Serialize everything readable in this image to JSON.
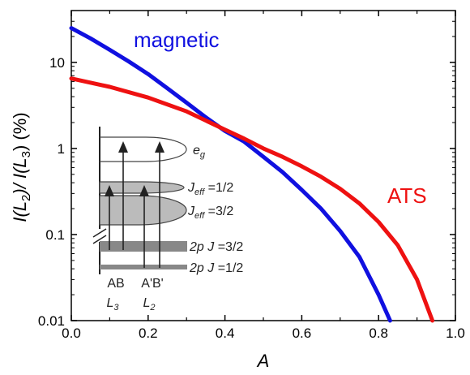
{
  "chart_data": {
    "type": "line",
    "xlabel": "A",
    "ylabel_parts": [
      "I(L",
      "2",
      ")/ I(L",
      "3",
      ") (%)"
    ],
    "xlim": [
      0.0,
      1.0
    ],
    "ylim": [
      0.01,
      40
    ],
    "yscale": "log",
    "x_ticks": [
      0.0,
      0.2,
      0.4,
      0.6,
      0.8,
      1.0
    ],
    "x_tick_labels": [
      "0.0",
      "0.2",
      "0.4",
      "0.6",
      "0.8",
      "1.0"
    ],
    "y_ticks": [
      0.01,
      0.1,
      1,
      10
    ],
    "y_tick_labels": [
      "0.01",
      "0.1",
      "1",
      "10"
    ],
    "series": [
      {
        "name": "magnetic",
        "color": "#1010e0",
        "x": [
          0.0,
          0.05,
          0.1,
          0.15,
          0.2,
          0.25,
          0.3,
          0.35,
          0.4,
          0.45,
          0.5,
          0.55,
          0.6,
          0.65,
          0.7,
          0.75,
          0.8,
          0.83
        ],
        "y": [
          25,
          19,
          14,
          10.2,
          7.3,
          5.0,
          3.4,
          2.3,
          1.6,
          1.2,
          0.8,
          0.53,
          0.33,
          0.2,
          0.11,
          0.055,
          0.02,
          0.01
        ]
      },
      {
        "name": "ATS",
        "color": "#ee1111",
        "x": [
          0.0,
          0.1,
          0.2,
          0.3,
          0.4,
          0.45,
          0.5,
          0.55,
          0.6,
          0.65,
          0.7,
          0.75,
          0.8,
          0.85,
          0.9,
          0.94
        ],
        "y": [
          6.5,
          5.2,
          3.9,
          2.7,
          1.65,
          1.3,
          1.0,
          0.8,
          0.62,
          0.47,
          0.34,
          0.23,
          0.14,
          0.075,
          0.03,
          0.01
        ]
      }
    ],
    "inset": {
      "levels": {
        "eg": "e",
        "eg_sub": "g",
        "jeff_half": "J",
        "jeff_half_sub": "eff",
        "jeff_half_val": " =1/2",
        "jeff_threehalf": "J",
        "jeff_threehalf_sub": "eff",
        "jeff_threehalf_val": " =3/2",
        "core_32_pre": "2p ",
        "core_32_j": "J",
        "core_32_val": " =3/2",
        "core_12_pre": "2p ",
        "core_12_j": "J",
        "core_12_val": " =1/2"
      },
      "transition_labels": [
        "AB",
        "A'B'"
      ],
      "edge_labels": [
        {
          "main": "L",
          "sub": "3"
        },
        {
          "main": "L",
          "sub": "2"
        }
      ],
      "colors": {
        "core_level": "#888888",
        "level_fill": "#bbbbbb",
        "arrow": "#222222"
      }
    }
  }
}
